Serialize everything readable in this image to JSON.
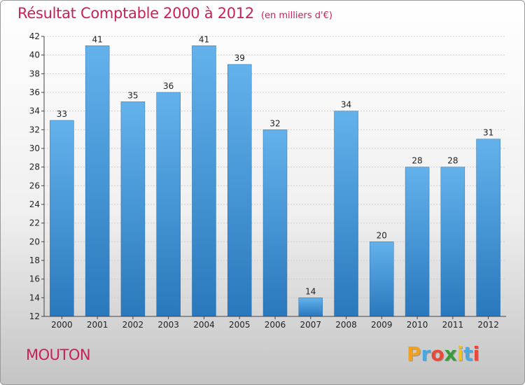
{
  "chart_data": {
    "type": "bar",
    "title": "Résultat Comptable 2000 à 2012",
    "unit": "(en milliers d'€)",
    "categories": [
      "2000",
      "2001",
      "2002",
      "2003",
      "2004",
      "2005",
      "2006",
      "2007",
      "2008",
      "2009",
      "2010",
      "2011",
      "2012"
    ],
    "values": [
      33,
      41,
      35,
      36,
      41,
      39,
      32,
      14,
      34,
      20,
      28,
      28,
      31
    ],
    "ylim": [
      12,
      42
    ],
    "yticks": [
      12,
      14,
      16,
      18,
      20,
      22,
      24,
      26,
      28,
      30,
      32,
      34,
      36,
      38,
      40,
      42
    ],
    "grid": true,
    "bar_color": "#3a8fd4"
  },
  "place_name": "MOUTON",
  "logo": {
    "letters": [
      "P",
      "r",
      "o",
      "x",
      "i",
      "t",
      "i"
    ],
    "colors": [
      "#f2a01e",
      "#4aa8e0",
      "#e84a3a",
      "#3a9a3a",
      "#f2c21e",
      "#4aa8e0",
      "#e84a3a"
    ]
  }
}
